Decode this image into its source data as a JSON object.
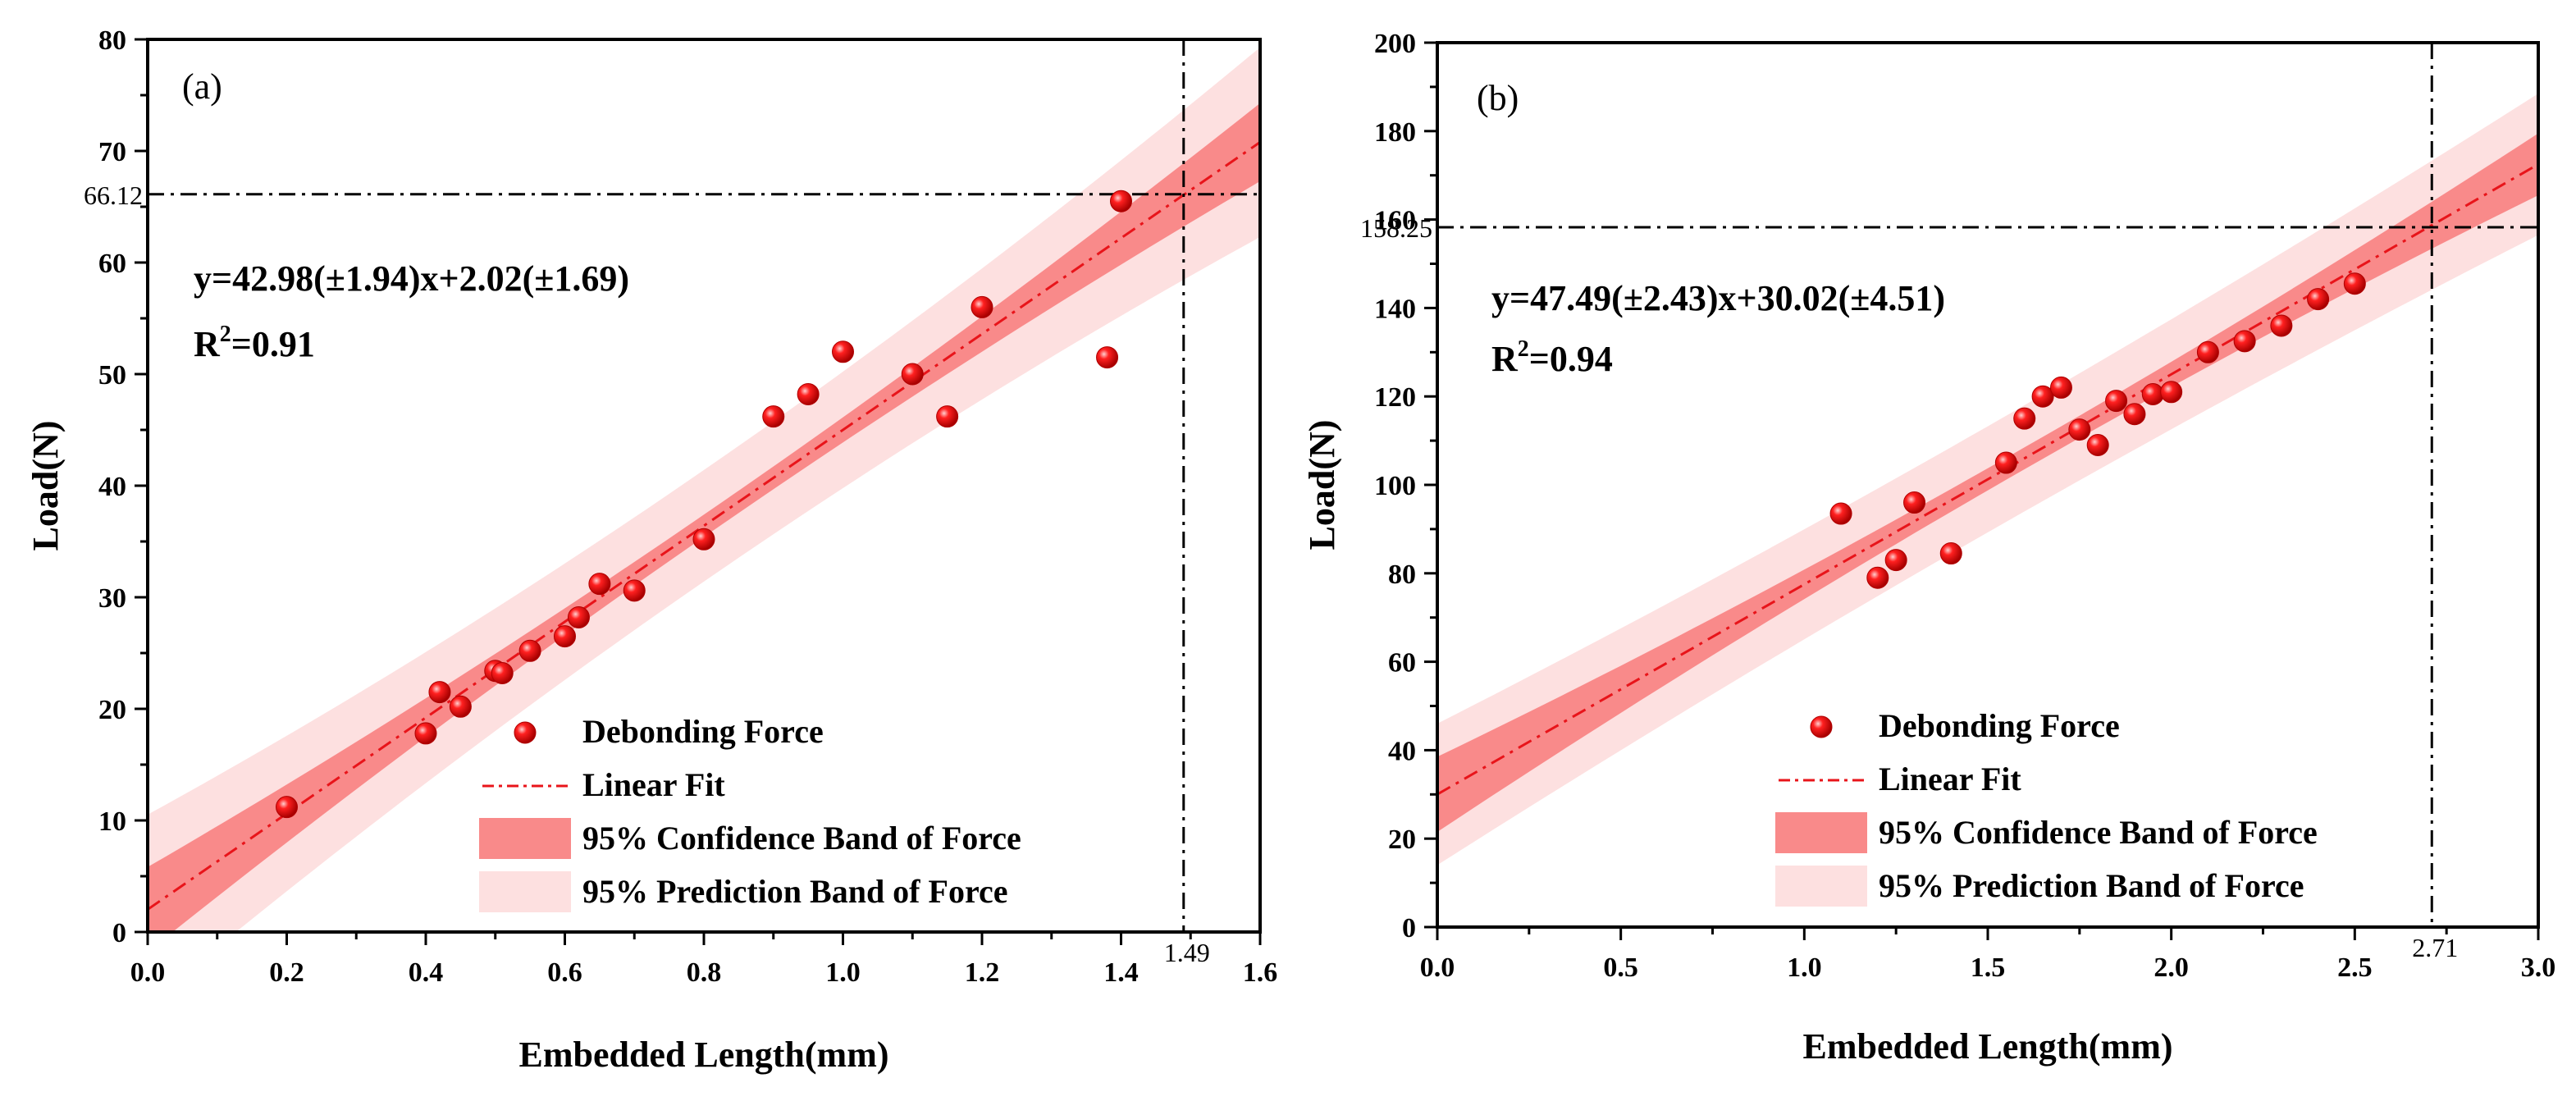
{
  "chart_data": [
    {
      "type": "scatter",
      "panel_label": "(a)",
      "xlabel": "Embedded Length(mm)",
      "ylabel": "Load(N)",
      "xlim": [
        0.0,
        1.6
      ],
      "ylim": [
        0,
        80
      ],
      "x_ticks": [
        "0.0",
        "0.2",
        "0.4",
        "0.6",
        "0.8",
        "1.0",
        "1.2",
        "1.4",
        "1.6"
      ],
      "y_ticks": [
        "0",
        "10",
        "20",
        "30",
        "40",
        "50",
        "60",
        "70",
        "80"
      ],
      "equation": "y=42.98(±1.94)x+2.02(±1.69)",
      "r2_prefix": "R",
      "r2_sup": "2",
      "r2_value": "=0.91",
      "fit": {
        "slope": 42.98,
        "intercept": 2.02
      },
      "confidence_half_width": [
        3.8,
        1.0,
        3.5
      ],
      "prediction_half_width": [
        8.5,
        5.0,
        8.5
      ],
      "ref_x": 1.49,
      "ref_y": 66.12,
      "ref_x_label": "1.49",
      "ref_y_label": "66.12",
      "series": [
        {
          "name": "Debonding Force",
          "points": [
            [
              0.2,
              11.2
            ],
            [
              0.4,
              17.8
            ],
            [
              0.42,
              21.5
            ],
            [
              0.45,
              20.2
            ],
            [
              0.5,
              23.4
            ],
            [
              0.51,
              23.2
            ],
            [
              0.55,
              25.2
            ],
            [
              0.6,
              26.5
            ],
            [
              0.62,
              28.2
            ],
            [
              0.65,
              31.2
            ],
            [
              0.7,
              30.6
            ],
            [
              0.8,
              35.2
            ],
            [
              0.9,
              46.2
            ],
            [
              0.95,
              48.2
            ],
            [
              1.0,
              52.0
            ],
            [
              1.1,
              50.0
            ],
            [
              1.15,
              46.2
            ],
            [
              1.2,
              56.0
            ],
            [
              1.38,
              51.5
            ],
            [
              1.4,
              65.5
            ]
          ]
        }
      ],
      "legend": [
        "Debonding Force",
        "Linear Fit",
        "95% Confidence Band of Force",
        "95% Prediction Band of Force"
      ]
    },
    {
      "type": "scatter",
      "panel_label": "(b)",
      "xlabel": "Embedded Length(mm)",
      "ylabel": "Load(N)",
      "xlim": [
        0.0,
        3.0
      ],
      "ylim": [
        0,
        200
      ],
      "x_ticks": [
        "0.0",
        "0.5",
        "1.0",
        "1.5",
        "2.0",
        "2.5",
        "3.0"
      ],
      "y_ticks": [
        "0",
        "20",
        "40",
        "60",
        "80",
        "100",
        "120",
        "140",
        "160",
        "180",
        "200"
      ],
      "equation": "y=47.49(±2.43)x+30.02(±4.51)",
      "r2_prefix": "R",
      "r2_sup": "2",
      "r2_value": "=0.94",
      "fit": {
        "slope": 47.49,
        "intercept": 30.02
      },
      "confidence_half_width": [
        8.5,
        2.5,
        7.0
      ],
      "prediction_half_width": [
        16.0,
        12.0,
        16.0
      ],
      "ref_x": 2.71,
      "ref_y": 158.25,
      "ref_x_label": "2.71",
      "ref_y_label": "158.25",
      "series": [
        {
          "name": "Debonding Force",
          "points": [
            [
              1.1,
              93.5
            ],
            [
              1.2,
              79.0
            ],
            [
              1.25,
              83.0
            ],
            [
              1.3,
              96.0
            ],
            [
              1.4,
              84.5
            ],
            [
              1.55,
              105.0
            ],
            [
              1.6,
              115.0
            ],
            [
              1.65,
              120.0
            ],
            [
              1.7,
              122.0
            ],
            [
              1.75,
              112.5
            ],
            [
              1.8,
              109.0
            ],
            [
              1.85,
              119.0
            ],
            [
              1.9,
              116.0
            ],
            [
              1.95,
              120.5
            ],
            [
              2.0,
              121.0
            ],
            [
              2.1,
              130.0
            ],
            [
              2.2,
              132.5
            ],
            [
              2.3,
              136.0
            ],
            [
              2.4,
              142.0
            ],
            [
              2.5,
              145.5
            ]
          ]
        }
      ],
      "legend": [
        "Debonding Force",
        "Linear Fit",
        "95% Confidence Band of Force",
        "95% Prediction Band of Force"
      ]
    }
  ],
  "colors": {
    "marker": "#ff1a1a",
    "marker_edge": "#b00000",
    "fit_line": "#e8141a",
    "confidence_band": "#f98a8a",
    "prediction_band": "#fde0e0",
    "reference_line": "#000000"
  }
}
